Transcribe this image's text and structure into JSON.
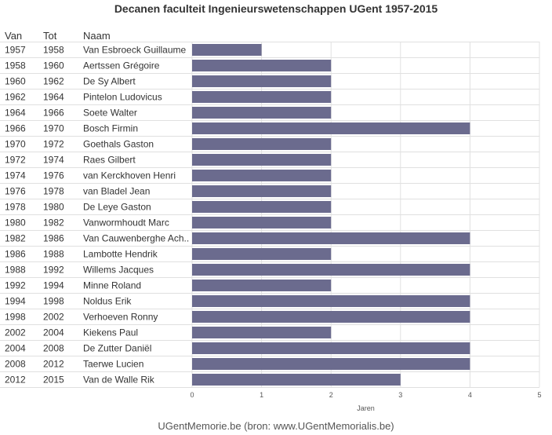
{
  "title": "Decanen faculteit Ingenieurswetenschappen UGent 1957-2015",
  "columns": {
    "van": "Van",
    "tot": "Tot",
    "naam": "Naam"
  },
  "footer": "UGentMemorie.be (bron: www.UGentMemorialis.be)",
  "colors": {
    "bar": "#6b6b8e",
    "grid": "#e0e0e0",
    "text": "#333333"
  },
  "chart_data": {
    "type": "bar",
    "orientation": "horizontal",
    "title": "Decanen faculteit Ingenieurswetenschappen UGent 1957-2015",
    "xlabel": "Jaren",
    "xlim": [
      0,
      5
    ],
    "xticks": [
      0,
      1,
      2,
      3,
      4,
      5
    ],
    "rows": [
      {
        "van": "1957",
        "tot": "1958",
        "naam": "Van Esbroeck Guillaume",
        "jaren": 1
      },
      {
        "van": "1958",
        "tot": "1960",
        "naam": "Aertssen Grégoire",
        "jaren": 2
      },
      {
        "van": "1960",
        "tot": "1962",
        "naam": "De Sy Albert",
        "jaren": 2
      },
      {
        "van": "1962",
        "tot": "1964",
        "naam": "Pintelon Ludovicus",
        "jaren": 2
      },
      {
        "van": "1964",
        "tot": "1966",
        "naam": "Soete Walter",
        "jaren": 2
      },
      {
        "van": "1966",
        "tot": "1970",
        "naam": "Bosch Firmin",
        "jaren": 4
      },
      {
        "van": "1970",
        "tot": "1972",
        "naam": "Goethals Gaston",
        "jaren": 2
      },
      {
        "van": "1972",
        "tot": "1974",
        "naam": "Raes Gilbert",
        "jaren": 2
      },
      {
        "van": "1974",
        "tot": "1976",
        "naam": "van Kerckhoven Henri",
        "jaren": 2
      },
      {
        "van": "1976",
        "tot": "1978",
        "naam": "van Bladel Jean",
        "jaren": 2
      },
      {
        "van": "1978",
        "tot": "1980",
        "naam": "De Leye Gaston",
        "jaren": 2
      },
      {
        "van": "1980",
        "tot": "1982",
        "naam": "Vanwormhoudt Marc",
        "jaren": 2
      },
      {
        "van": "1982",
        "tot": "1986",
        "naam": "Van Cauwenberghe Ach..",
        "jaren": 4
      },
      {
        "van": "1986",
        "tot": "1988",
        "naam": "Lambotte Hendrik",
        "jaren": 2
      },
      {
        "van": "1988",
        "tot": "1992",
        "naam": "Willems Jacques",
        "jaren": 4
      },
      {
        "van": "1992",
        "tot": "1994",
        "naam": "Minne Roland",
        "jaren": 2
      },
      {
        "van": "1994",
        "tot": "1998",
        "naam": "Noldus Erik",
        "jaren": 4
      },
      {
        "van": "1998",
        "tot": "2002",
        "naam": "Verhoeven Ronny",
        "jaren": 4
      },
      {
        "van": "2002",
        "tot": "2004",
        "naam": "Kiekens Paul",
        "jaren": 2
      },
      {
        "van": "2004",
        "tot": "2008",
        "naam": "De Zutter Daniël",
        "jaren": 4
      },
      {
        "van": "2008",
        "tot": "2012",
        "naam": "Taerwe Lucien",
        "jaren": 4
      },
      {
        "van": "2012",
        "tot": "2015",
        "naam": "Van de Walle Rik",
        "jaren": 3
      }
    ]
  }
}
